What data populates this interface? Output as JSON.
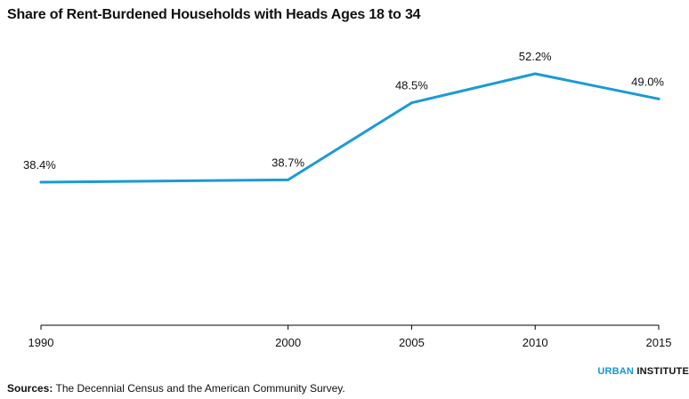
{
  "chart_data": {
    "type": "line",
    "title": "Share of Rent-Burdened Households with Heads Ages 18 to 34",
    "xlabel": "",
    "ylabel": "",
    "x": [
      1990,
      2000,
      2005,
      2010,
      2015
    ],
    "x_tick_labels": [
      "1990",
      "2000",
      "2005",
      "2010",
      "2015"
    ],
    "series": [
      {
        "values": [
          38.4,
          38.7,
          48.5,
          52.2,
          49.0
        ],
        "data_labels": [
          "38.4%",
          "38.7%",
          "48.5%",
          "52.2%",
          "49.0%"
        ],
        "color": "#1b9ad6"
      }
    ],
    "ylim": [
      25,
      55
    ],
    "grid": false,
    "legend": "none"
  },
  "branding": {
    "part1": "URBAN",
    "part2": "INSTITUTE"
  },
  "source": {
    "label": "Sources:",
    "text": "The Decennial Census and the American Community Survey."
  }
}
